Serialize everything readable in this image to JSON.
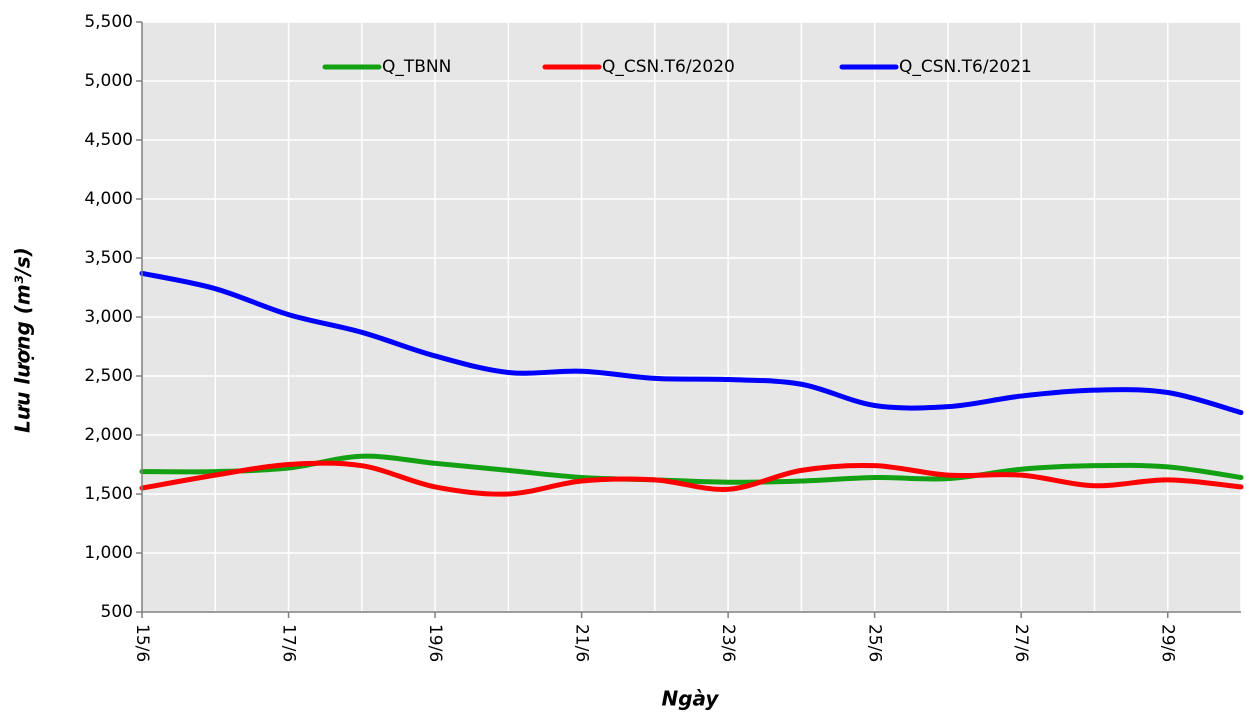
{
  "chart_data": {
    "type": "line",
    "x_label": "Ngày",
    "y_label": "Lưu lượng (m³/s)",
    "categories": [
      "15/6",
      null,
      "17/6",
      null,
      "19/6",
      null,
      "21/6",
      null,
      "23/6",
      null,
      "25/6",
      null,
      "27/6",
      null,
      "29/6",
      null
    ],
    "series": [
      {
        "name": "Q_TBNN",
        "color": "#13a013",
        "values": [
          1690,
          1690,
          1720,
          1820,
          1760,
          1700,
          1640,
          1620,
          1600,
          1610,
          1640,
          1630,
          1710,
          1740,
          1730,
          1640
        ]
      },
      {
        "name": "Q_CSN.T6/2020",
        "color": "#ff0000",
        "values": [
          1550,
          1660,
          1750,
          1740,
          1560,
          1500,
          1610,
          1620,
          1540,
          1700,
          1740,
          1660,
          1660,
          1570,
          1620,
          1560
        ]
      },
      {
        "name": "Q_CSN.T6/2021",
        "color": "#0000ff",
        "values": [
          3370,
          3240,
          3020,
          2870,
          2670,
          2530,
          2540,
          2480,
          2470,
          2430,
          2250,
          2240,
          2330,
          2380,
          2360,
          2190
        ]
      }
    ],
    "ylim": [
      500,
      5500
    ],
    "yticks": [
      500,
      {
        "value": 1000,
        "label": "1,000"
      },
      {
        "value": 1500,
        "label": "1,500"
      },
      {
        "value": 2000,
        "label": "2,000"
      },
      {
        "value": 2500,
        "label": "2,500"
      },
      {
        "value": 3000,
        "label": "3,000"
      },
      {
        "value": 3500,
        "label": "3,500"
      },
      {
        "value": 4000,
        "label": "4,000"
      },
      {
        "value": 4500,
        "label": "4,500"
      },
      {
        "value": 5000,
        "label": "5,000"
      },
      {
        "value": 5500,
        "label": "5,500"
      }
    ],
    "grid": true,
    "legend": "top"
  }
}
